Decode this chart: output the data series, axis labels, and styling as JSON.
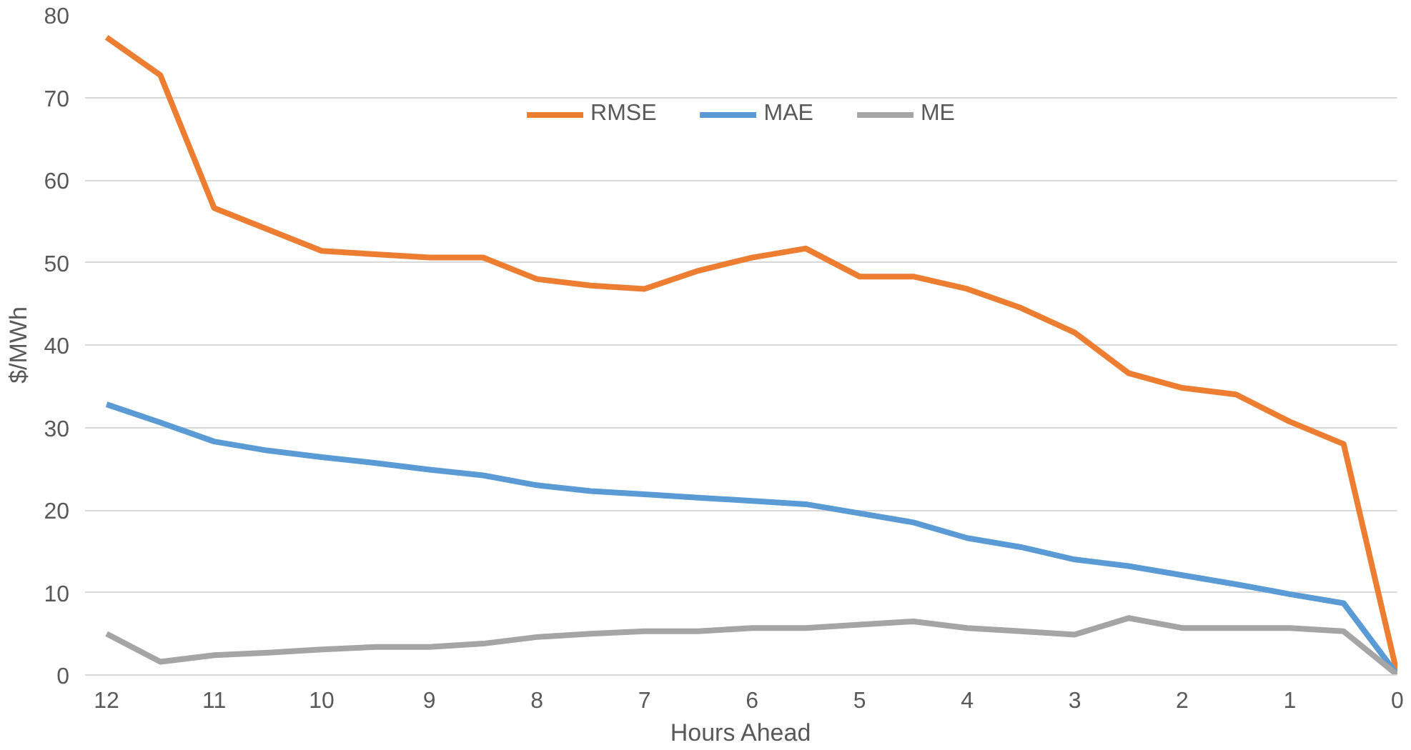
{
  "chart_data": {
    "type": "line",
    "xlabel": "Hours Ahead",
    "ylabel": "$/MWh",
    "x": [
      12,
      11.5,
      11,
      10.5,
      10,
      9.5,
      9,
      8.5,
      8,
      7.5,
      7,
      6.5,
      6,
      5.5,
      5,
      4.5,
      4,
      3.5,
      3,
      2.5,
      2,
      1.5,
      1,
      0.5,
      0
    ],
    "series": [
      {
        "name": "RMSE",
        "color": "#ed7d31",
        "values": [
          77.3,
          72.7,
          56.6,
          54,
          51.4,
          51,
          50.6,
          50.6,
          48,
          47.2,
          46.8,
          49,
          50.6,
          51.7,
          48.3,
          48.3,
          46.8,
          44.5,
          41.5,
          36.6,
          34.8,
          34,
          30.7,
          28,
          0
        ]
      },
      {
        "name": "MAE",
        "color": "#5b9bd5",
        "values": [
          32.8,
          30.6,
          28.3,
          27.2,
          26.4,
          25.7,
          24.9,
          24.2,
          23,
          22.3,
          21.9,
          21.5,
          21.1,
          20.7,
          19.6,
          18.5,
          16.6,
          15.5,
          14,
          13.2,
          12.1,
          11,
          9.8,
          8.7,
          0
        ]
      },
      {
        "name": "ME",
        "color": "#a5a5a5",
        "values": [
          5,
          1.6,
          2.4,
          2.7,
          3.1,
          3.4,
          3.4,
          3.8,
          4.6,
          5,
          5.3,
          5.3,
          5.7,
          5.7,
          6.1,
          6.5,
          5.7,
          5.3,
          4.9,
          6.9,
          5.7,
          5.7,
          5.7,
          5.3,
          0
        ]
      }
    ],
    "xlim": [
      12.2,
      0
    ],
    "xticks": [
      12,
      11,
      10,
      9,
      8,
      7,
      6,
      5,
      4,
      3,
      2,
      1,
      0
    ],
    "ylim": [
      0,
      80
    ],
    "yticks": [
      0,
      10,
      20,
      30,
      40,
      50,
      60,
      70,
      80
    ],
    "grid": "y",
    "legend": "top",
    "marker": "none",
    "line_style": "solid"
  }
}
